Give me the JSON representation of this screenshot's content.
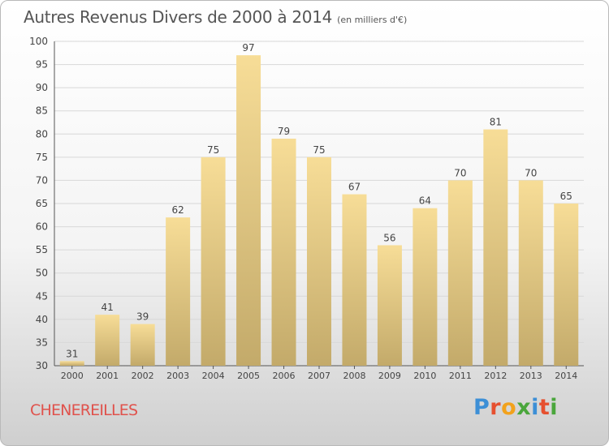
{
  "title": "Autres Revenus Divers de 2000 à 2014",
  "subtitle": "(en milliers d'€)",
  "place": "CHENEREILLES",
  "logo": {
    "text": "Proxiti",
    "letters": [
      {
        "ch": "P",
        "color": "#3d8fd6"
      },
      {
        "ch": "r",
        "color": "#e6502f"
      },
      {
        "ch": "o",
        "color": "#f2a21c"
      },
      {
        "ch": "x",
        "color": "#4aa63c"
      },
      {
        "ch": "i",
        "color": "#3d8fd6"
      },
      {
        "ch": "t",
        "color": "#e6502f"
      },
      {
        "ch": "i",
        "color": "#4aa63c"
      }
    ]
  },
  "chart_data": {
    "type": "bar",
    "title": "Autres Revenus Divers de 2000 à 2014",
    "subtitle": "(en milliers d'€)",
    "categories": [
      "2000",
      "2001",
      "2002",
      "2003",
      "2004",
      "2005",
      "2006",
      "2007",
      "2008",
      "2009",
      "2010",
      "2011",
      "2012",
      "2013",
      "2014"
    ],
    "values": [
      31,
      41,
      39,
      62,
      75,
      97,
      79,
      75,
      67,
      56,
      64,
      70,
      81,
      70,
      65
    ],
    "ylim": [
      30,
      100
    ],
    "yticks": [
      30,
      35,
      40,
      45,
      50,
      55,
      60,
      65,
      70,
      75,
      80,
      85,
      90,
      95,
      100
    ],
    "grid": true,
    "data_labels": true,
    "colors": {
      "bar_top": "#f7dd97",
      "bar_bottom": "#c3aa6a",
      "grid": "#d8d8d8",
      "text": "#444444",
      "title": "#555555",
      "place": "#e0524c"
    }
  }
}
